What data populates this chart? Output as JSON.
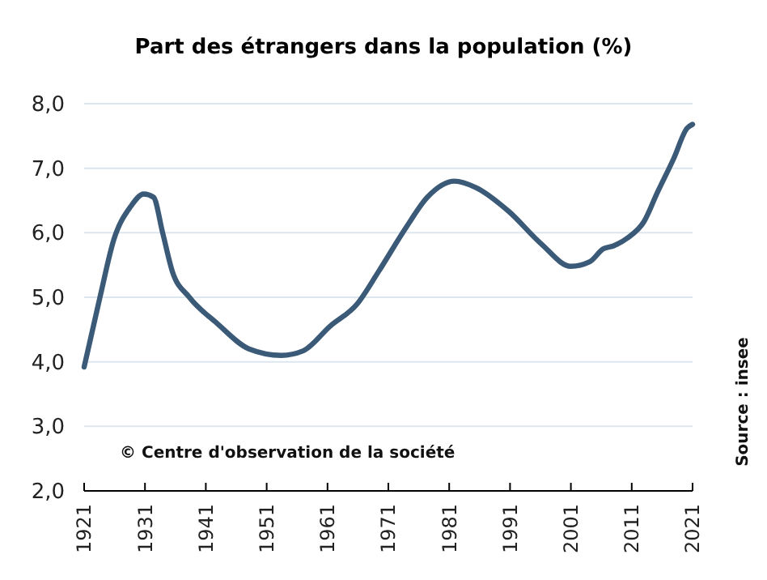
{
  "chart_data": {
    "type": "line",
    "title": "Part des étrangers dans la population  (%)",
    "annotations": [
      "© Centre d'observation de la société",
      "Source : insee"
    ],
    "x": [
      1921,
      1923.6,
      1925.9,
      1928.6,
      1930.8,
      1932.4,
      1933.9,
      1935.5,
      1938.3,
      1942.8,
      1948.1,
      1953.4,
      1957,
      1961.4,
      1965.9,
      1969.4,
      1973.9,
      1977.4,
      1981.9,
      1985.4,
      1990.8,
      1996.1,
      2001,
      2004.1,
      2006.3,
      2008.1,
      2010.3,
      2013,
      2015.2,
      2017.9,
      2020.1,
      2021
    ],
    "series": [
      {
        "color": "#3b5a78",
        "values": [
          3.92,
          5.0,
          5.9,
          6.4,
          6.6,
          6.55,
          6.0,
          5.4,
          5.0,
          4.6,
          4.2,
          4.1,
          4.17,
          4.55,
          4.9,
          5.4,
          6.08,
          6.55,
          6.8,
          6.7,
          6.33,
          5.83,
          5.48,
          5.55,
          5.75,
          5.8,
          5.92,
          6.17,
          6.62,
          7.15,
          7.62,
          7.68
        ]
      }
    ],
    "xlim": [
      1921,
      2021
    ],
    "xticks": [
      1921,
      1931,
      1941,
      1951,
      1961,
      1971,
      1981,
      1991,
      2001,
      2011,
      2021
    ],
    "ylim": [
      2,
      8
    ],
    "yticks": [
      {
        "value": 2,
        "label": "2,0"
      },
      {
        "value": 3,
        "label": "3,0"
      },
      {
        "value": 4,
        "label": "4,0"
      },
      {
        "value": 5,
        "label": "5,0"
      },
      {
        "value": 6,
        "label": "6,0"
      },
      {
        "value": 7,
        "label": "7,0"
      },
      {
        "value": 8,
        "label": "8,0"
      }
    ],
    "grid": "y",
    "marker": "none",
    "line_style": "solid"
  }
}
